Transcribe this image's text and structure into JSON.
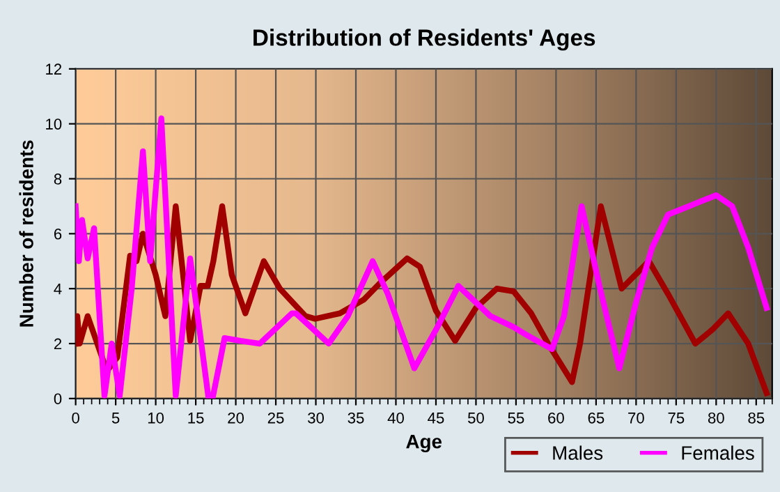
{
  "chart_data": {
    "type": "line",
    "title": "Distribution of Residents' Ages",
    "xlabel": "Age",
    "ylabel": "Number of residents",
    "xlim": [
      0,
      87
    ],
    "xticks": [
      0,
      5,
      10,
      15,
      20,
      25,
      30,
      35,
      40,
      45,
      50,
      55,
      60,
      65,
      70,
      75,
      80,
      85
    ],
    "ylim": [
      0,
      12
    ],
    "yticks": [
      0,
      2,
      4,
      6,
      8,
      10,
      12
    ],
    "grid": true,
    "legend": "bottom right",
    "marker": "none",
    "line_style": "solid",
    "series": [
      {
        "name": "Males",
        "color": "#a00000",
        "x": [
          0,
          0.2,
          0.5,
          1.5,
          3.9,
          5.2,
          6.8,
          7.6,
          8.4,
          10,
          11.2,
          12.5,
          14.3,
          15.6,
          16.5,
          17.2,
          18.3,
          19.5,
          21.2,
          23.5,
          25.5,
          28.7,
          29.9,
          33,
          36,
          38,
          41.4,
          43,
          45,
          47.4,
          50,
          52.6,
          54.7,
          56.9,
          59,
          62,
          63,
          65.6,
          68.2,
          71.6,
          74,
          77.4,
          79.5,
          81.5,
          84,
          86.3
        ],
        "values": [
          2,
          3,
          2,
          3,
          1,
          1.5,
          5.2,
          5,
          6,
          4.5,
          3,
          7,
          2.1,
          4.1,
          4.1,
          5,
          7,
          4.5,
          3.1,
          5,
          4,
          3,
          2.9,
          3.1,
          3.6,
          4.2,
          5.1,
          4.8,
          3.2,
          2.1,
          3.3,
          4,
          3.9,
          3.1,
          2,
          0.6,
          2,
          7,
          4,
          5,
          3.8,
          2,
          2.5,
          3.1,
          2,
          0.2
        ]
      },
      {
        "name": "Females",
        "color": "#ff00ff",
        "x": [
          0,
          0.4,
          0.8,
          1.5,
          2.3,
          3.6,
          4.5,
          5.5,
          7,
          8.4,
          9.3,
          10.7,
          12.5,
          14.3,
          16.6,
          17.1,
          18.6,
          20.6,
          23,
          27,
          27.5,
          29,
          31.6,
          34,
          37.1,
          39,
          42.3,
          45,
          47.8,
          51.8,
          54.7,
          56.4,
          59.5,
          61,
          63.2,
          65.5,
          67.9,
          70,
          72,
          74,
          76.6,
          80,
          82,
          84,
          86.3
        ],
        "values": [
          7,
          5,
          6.5,
          5.1,
          6.2,
          0.1,
          2,
          0.1,
          4,
          9,
          5,
          10.2,
          0.1,
          5.1,
          0,
          0,
          2.2,
          2.1,
          2,
          3.1,
          3.1,
          2.7,
          2,
          3,
          5,
          3.8,
          1.1,
          2.5,
          4.1,
          3,
          2.6,
          2.3,
          1.8,
          3,
          7,
          4,
          1.1,
          3.5,
          5.5,
          6.7,
          7,
          7.4,
          7,
          5.5,
          3.3
        ]
      }
    ]
  }
}
